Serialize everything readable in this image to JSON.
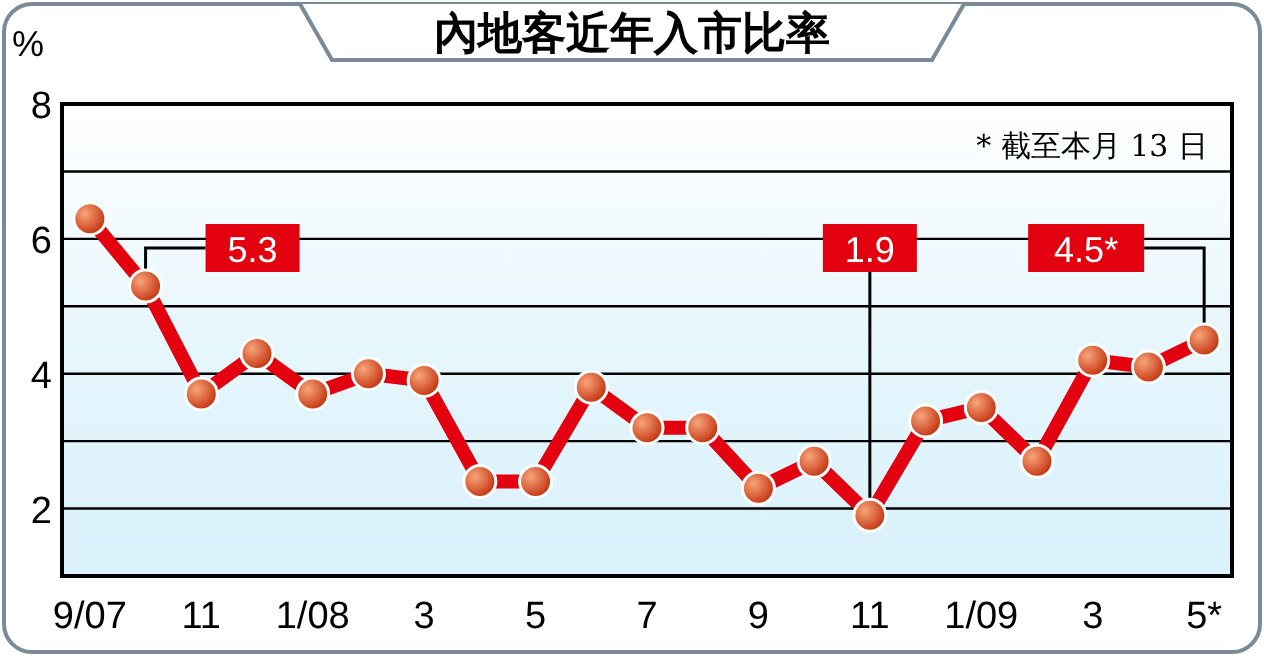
{
  "chart_data": {
    "type": "line",
    "title": "內地客近年入市比率",
    "ylabel": "%",
    "annotations": [
      "* 截至本月 13 日"
    ],
    "categories": [
      "9/07",
      null,
      "11",
      null,
      "1/08",
      null,
      "3",
      null,
      "5",
      null,
      "7",
      null,
      "9",
      null,
      "11",
      null,
      "1/09",
      null,
      "3",
      null,
      "5*"
    ],
    "series": [
      {
        "color": "#e3000f",
        "values": [
          6.3,
          5.3,
          3.7,
          4.3,
          3.7,
          4.0,
          3.9,
          2.4,
          2.4,
          3.8,
          3.2,
          3.2,
          2.3,
          2.7,
          1.9,
          3.3,
          3.5,
          2.7,
          4.2,
          4.1,
          4.5
        ],
        "value_labels": [
          null,
          "5.3",
          null,
          null,
          null,
          null,
          null,
          null,
          null,
          null,
          null,
          null,
          null,
          null,
          "1.9",
          null,
          null,
          null,
          null,
          null,
          "4.5*"
        ]
      }
    ],
    "ylim": [
      1,
      8
    ],
    "yticks": [
      {
        "value": 1,
        "label": null
      },
      2,
      {
        "value": 3,
        "label": null
      },
      4,
      {
        "value": 5,
        "label": null
      },
      6,
      {
        "value": 7,
        "label": null
      },
      8
    ],
    "grid": "y",
    "marker": "circle",
    "line_style": "solid"
  }
}
